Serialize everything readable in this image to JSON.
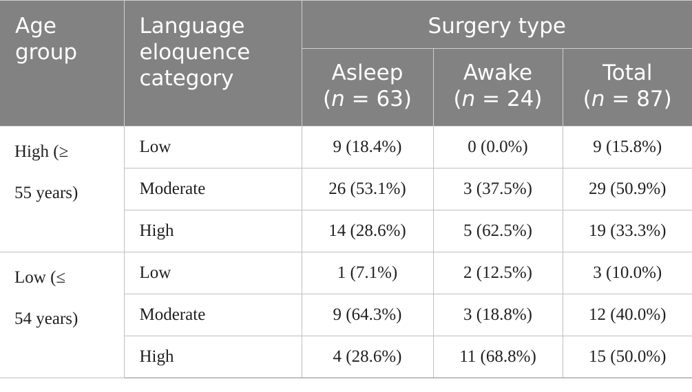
{
  "header": {
    "age_group": [
      "Age",
      "group"
    ],
    "category": [
      "Language",
      "eloquence",
      "category"
    ],
    "surgery_type": "Surgery type",
    "columns": [
      {
        "name": "Asleep",
        "n": "(n = 63)",
        "n_pre": "(",
        "n_var": "n",
        "n_post": " = 63)"
      },
      {
        "name": "Awake",
        "n": "(n = 24)",
        "n_pre": "(",
        "n_var": "n",
        "n_post": " = 24)"
      },
      {
        "name": "Total",
        "n": "(n = 87)",
        "n_pre": "(",
        "n_var": "n",
        "n_post": " = 87)"
      }
    ]
  },
  "groups": [
    {
      "age_label": [
        "High (≥",
        "55 years)"
      ],
      "rows": [
        {
          "category": "Low",
          "asleep": "9 (18.4%)",
          "awake": "0 (0.0%)",
          "total": "9 (15.8%)"
        },
        {
          "category": "Moderate",
          "asleep": "26 (53.1%)",
          "awake": "3 (37.5%)",
          "total": "29 (50.9%)"
        },
        {
          "category": "High",
          "asleep": "14 (28.6%)",
          "awake": "5 (62.5%)",
          "total": "19 (33.3%)"
        }
      ]
    },
    {
      "age_label": [
        "Low (≤",
        "54 years)"
      ],
      "rows": [
        {
          "category": "Low",
          "asleep": "1 (7.1%)",
          "awake": "2 (12.5%)",
          "total": "3 (10.0%)"
        },
        {
          "category": "Moderate",
          "asleep": "9 (64.3%)",
          "awake": "3 (18.8%)",
          "total": "12 (40.0%)"
        },
        {
          "category": "High",
          "asleep": "4 (28.6%)",
          "awake": "11 (68.8%)",
          "total": "15 (50.0%)"
        }
      ]
    }
  ],
  "colors": {
    "header_bg": "#828282",
    "header_text": "#ffffff",
    "border": "#bfbfbf"
  }
}
